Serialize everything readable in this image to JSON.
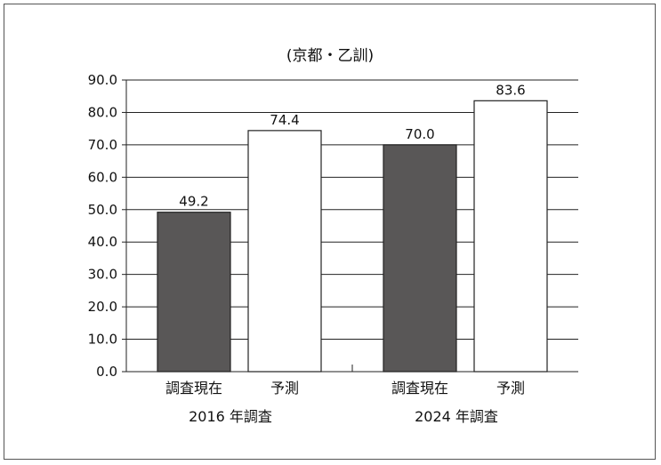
{
  "chart_data": {
    "type": "bar",
    "title": "(京都・乙訓)",
    "xlabel": "",
    "ylabel": "",
    "ylim": [
      0,
      90
    ],
    "y_ticks": [
      "0.0",
      "10.0",
      "20.0",
      "30.0",
      "40.0",
      "50.0",
      "60.0",
      "70.0",
      "80.0",
      "90.0"
    ],
    "grid": true,
    "groups": [
      {
        "label": "2016 年調査",
        "bars": [
          {
            "category": "調査現在",
            "value": 49.2,
            "value_label": "49.2",
            "fill": "#595757"
          },
          {
            "category": "予測",
            "value": 74.4,
            "value_label": "74.4",
            "fill": "#ffffff"
          }
        ]
      },
      {
        "label": "2024 年調査",
        "bars": [
          {
            "category": "調査現在",
            "value": 70.0,
            "value_label": "70.0",
            "fill": "#595757"
          },
          {
            "category": "予測",
            "value": 83.6,
            "value_label": "83.6",
            "fill": "#ffffff"
          }
        ]
      }
    ]
  }
}
